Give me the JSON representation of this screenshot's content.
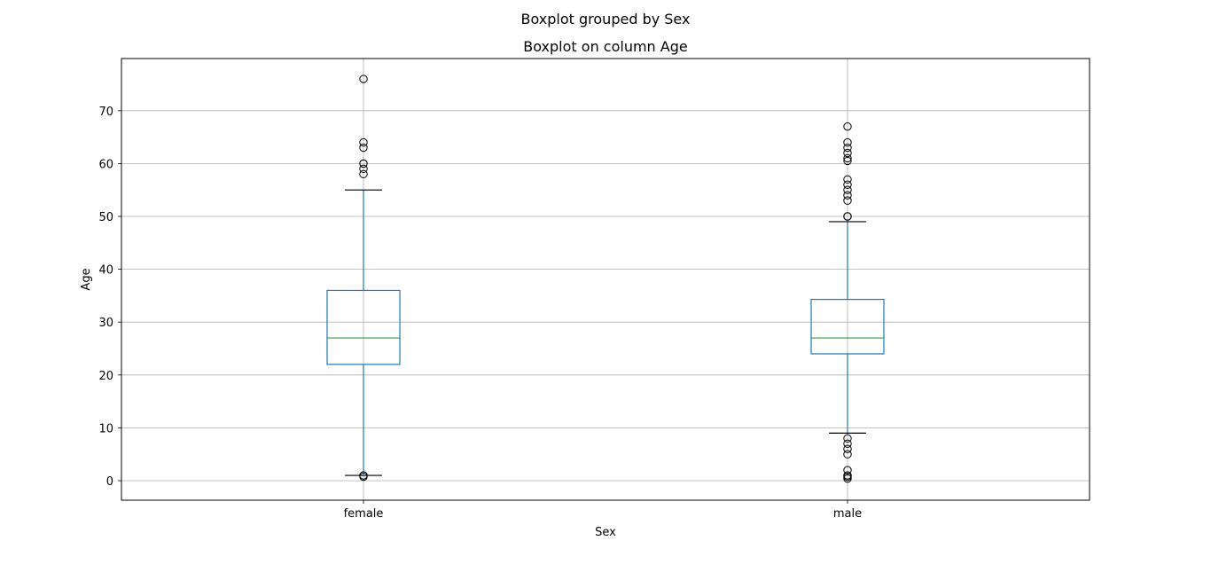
{
  "chart_data": {
    "type": "boxplot",
    "suptitle": "Boxplot grouped by Sex",
    "title": "Boxplot on column Age",
    "xlabel": "Sex",
    "ylabel": "Age",
    "categories": [
      "female",
      "male"
    ],
    "ylim": [
      -3.6,
      80
    ],
    "yticks": [
      0,
      10,
      20,
      30,
      40,
      50,
      60,
      70
    ],
    "grid": true,
    "boxes": [
      {
        "category": "female",
        "whisker_low": 1,
        "q1": 22,
        "median": 27,
        "q3": 36,
        "whisker_high": 55,
        "fliers": [
          76,
          64,
          63,
          60,
          60,
          59,
          58,
          1,
          0.75
        ]
      },
      {
        "category": "male",
        "whisker_low": 9,
        "q1": 24,
        "median": 27,
        "q3": 34.3,
        "whisker_high": 49,
        "fliers": [
          67,
          64,
          63,
          62,
          61,
          60.5,
          57,
          56,
          55,
          54,
          53,
          50,
          50,
          8,
          7,
          6,
          5,
          2,
          1,
          0.75,
          0.4
        ]
      }
    ],
    "colors": {
      "box": "#1f77b4",
      "median": "#2ca02c",
      "whisker_cap": "#000000",
      "flier": "#000000",
      "grid": "#b0b0b0"
    }
  }
}
